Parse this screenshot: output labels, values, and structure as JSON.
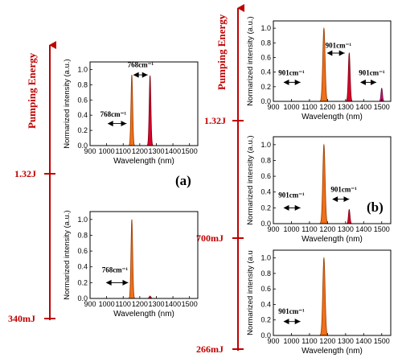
{
  "figure": {
    "y_axis_title": "Pumping Energy",
    "panel_labels": [
      "(a)",
      "(b)"
    ],
    "energy_labels_a": [
      "1.32J",
      "340mJ"
    ],
    "energy_labels_b": [
      "1.32J",
      "700mJ",
      "266mJ"
    ]
  },
  "colors": {
    "red_axis": "#c00000",
    "orange_peak": "#f07018",
    "red_peak": "#d8002a",
    "magenta_peak": "#c8146e"
  },
  "chart_data": [
    {
      "id": "a-top",
      "type": "area",
      "xlabel": "Wavelength (nm)",
      "ylabel": "Normarized intensity (a.u.)",
      "xlim": [
        900,
        1550
      ],
      "ylim": [
        0,
        1.1
      ],
      "xticks": [
        900,
        1000,
        1100,
        1200,
        1300,
        1400,
        1500
      ],
      "yticks": [
        "0.0",
        "0.2",
        "0.4",
        "0.6",
        "0.8",
        "1.0"
      ],
      "peaks": [
        {
          "center": 1152,
          "height": 0.93,
          "width": 12,
          "color": "orange"
        },
        {
          "center": 1262,
          "height": 0.92,
          "width": 12,
          "color": "red"
        }
      ],
      "annotations": [
        {
          "text": "768cm⁻¹",
          "x": 1040,
          "y": 0.38,
          "arrow": [
            1010,
            1120,
            0.29
          ]
        },
        {
          "text": "768cm⁻¹",
          "x": 1205,
          "y": 1.03,
          "arrow": [
            1165,
            1248,
            0.93
          ]
        }
      ]
    },
    {
      "id": "a-bottom",
      "type": "area",
      "xlabel": "Wavelength (nm)",
      "ylabel": "Normarized intensity (a.u.)",
      "xlim": [
        900,
        1550
      ],
      "ylim": [
        0,
        1.1
      ],
      "xticks": [
        900,
        1000,
        1100,
        1200,
        1300,
        1400,
        1500
      ],
      "yticks": [
        "0.0",
        "0.2",
        "0.4",
        "0.6",
        "0.8",
        "1.0"
      ],
      "peaks": [
        {
          "center": 1152,
          "height": 1.0,
          "width": 12,
          "color": "orange"
        },
        {
          "center": 1262,
          "height": 0.03,
          "width": 12,
          "color": "red"
        }
      ],
      "annotations": [
        {
          "text": "768cm⁻¹",
          "x": 1050,
          "y": 0.33,
          "arrow": [
            1000,
            1130,
            0.2
          ]
        }
      ]
    },
    {
      "id": "b-top",
      "type": "area",
      "xlabel": "Wavelength (nm)",
      "ylabel": "Normarized intensity (a.u.)",
      "xlim": [
        900,
        1550
      ],
      "ylim": [
        0,
        1.1
      ],
      "xticks": [
        900,
        1000,
        1100,
        1200,
        1300,
        1400,
        1500
      ],
      "yticks": [
        "0.0",
        "0.2",
        "0.4",
        "0.6",
        "0.8",
        "1.0"
      ],
      "peaks": [
        {
          "center": 1180,
          "height": 1.0,
          "width": 15,
          "color": "orange"
        },
        {
          "center": 1320,
          "height": 0.66,
          "width": 12,
          "color": "red"
        },
        {
          "center": 1500,
          "height": 0.18,
          "width": 10,
          "color": "magenta"
        }
      ],
      "annotations": [
        {
          "text": "901cm⁻¹",
          "x": 1000,
          "y": 0.36,
          "arrow": [
            960,
            1050,
            0.26
          ]
        },
        {
          "text": "901cm⁻¹",
          "x": 1260,
          "y": 0.73,
          "arrow": [
            1200,
            1295,
            0.66
          ]
        },
        {
          "text": "901cm⁻¹",
          "x": 1445,
          "y": 0.36,
          "arrow": [
            1385,
            1470,
            0.26
          ]
        }
      ]
    },
    {
      "id": "b-middle",
      "type": "area",
      "xlabel": "Wavelength (nm)",
      "ylabel": "Normarized intensity (a.u.)",
      "xlim": [
        900,
        1550
      ],
      "ylim": [
        0,
        1.1
      ],
      "xticks": [
        900,
        1000,
        1100,
        1200,
        1300,
        1400,
        1500
      ],
      "yticks": [
        "0.0",
        "0.2",
        "0.4",
        "0.6",
        "0.8",
        "1.0"
      ],
      "peaks": [
        {
          "center": 1180,
          "height": 1.0,
          "width": 15,
          "color": "orange"
        },
        {
          "center": 1320,
          "height": 0.18,
          "width": 10,
          "color": "red"
        }
      ],
      "annotations": [
        {
          "text": "901cm⁻¹",
          "x": 1000,
          "y": 0.33,
          "arrow": [
            960,
            1050,
            0.2
          ]
        },
        {
          "text": "901cm⁻¹",
          "x": 1290,
          "y": 0.4,
          "arrow": [
            1230,
            1320,
            0.31
          ]
        }
      ]
    },
    {
      "id": "b-bottom",
      "type": "area",
      "xlabel": "Wavelength (nm)",
      "ylabel": "Normarized intensity (a.u",
      "xlim": [
        900,
        1550
      ],
      "ylim": [
        0,
        1.1
      ],
      "xticks": [
        900,
        1000,
        1100,
        1200,
        1300,
        1400,
        1500
      ],
      "yticks": [
        "0.0",
        "0.2",
        "0.4",
        "0.6",
        "0.8",
        "1.0"
      ],
      "peaks": [
        {
          "center": 1180,
          "height": 1.0,
          "width": 15,
          "color": "orange"
        }
      ],
      "annotations": [
        {
          "text": "901cm⁻¹",
          "x": 1000,
          "y": 0.28,
          "arrow": [
            960,
            1050,
            0.18
          ]
        }
      ]
    }
  ]
}
